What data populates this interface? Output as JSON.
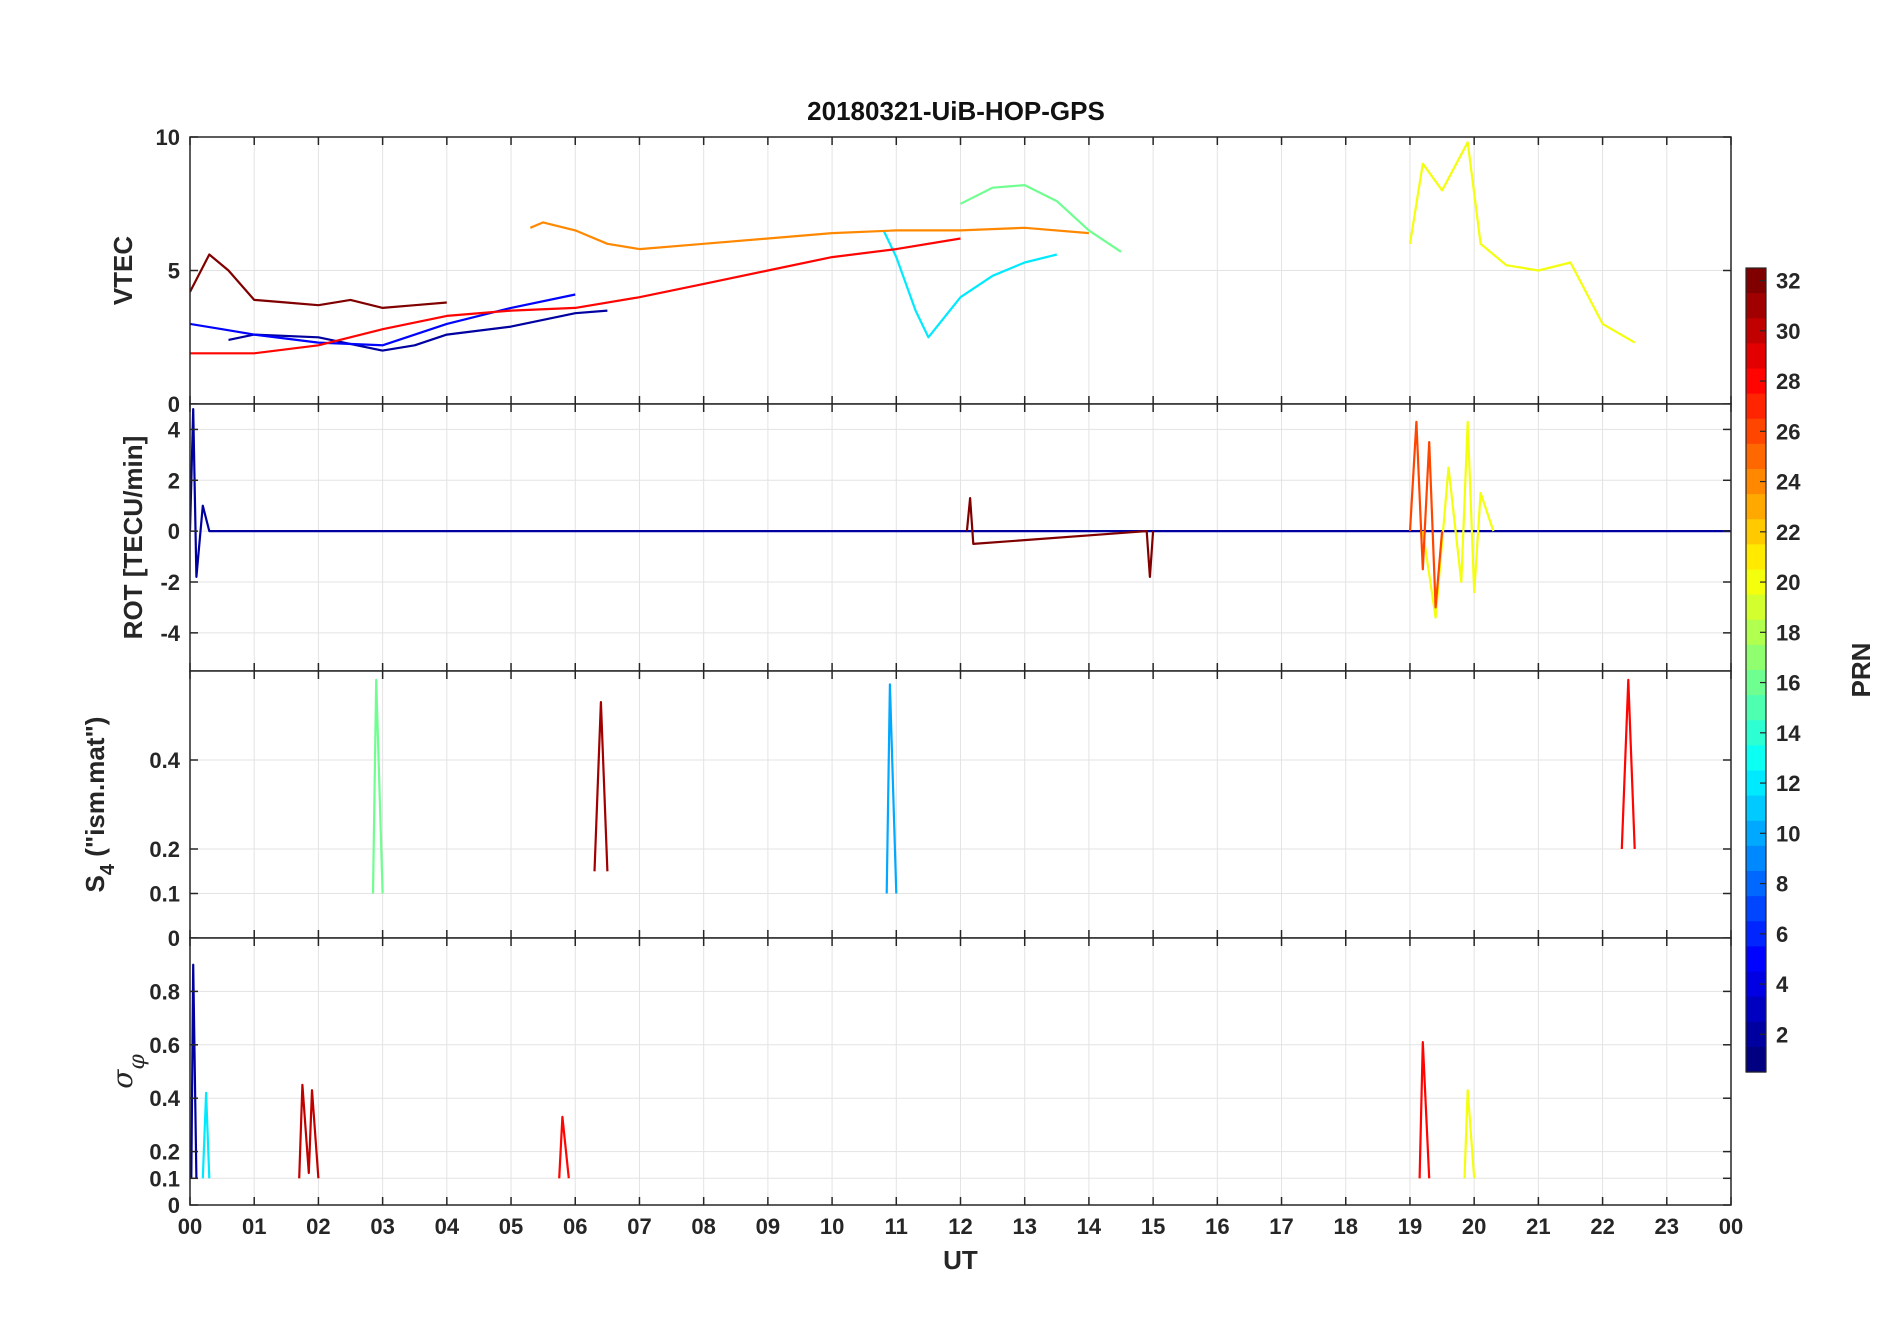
{
  "title": "20180321-UiB-HOP-GPS",
  "chart_data": {
    "type": "line",
    "title": "20180321-UiB-HOP-GPS",
    "xlabel": "UT",
    "xlim": [
      0,
      24
    ],
    "x_tick_labels": [
      "00",
      "01",
      "02",
      "03",
      "04",
      "05",
      "06",
      "07",
      "08",
      "09",
      "10",
      "11",
      "12",
      "13",
      "14",
      "15",
      "16",
      "17",
      "18",
      "19",
      "20",
      "21",
      "22",
      "23",
      "00"
    ],
    "grid": true,
    "colorbar": {
      "label": "PRN",
      "range": [
        1,
        32
      ],
      "colormap": "jet",
      "tick_labels": [
        "2",
        "4",
        "6",
        "8",
        "10",
        "12",
        "14",
        "16",
        "18",
        "20",
        "22",
        "24",
        "26",
        "28",
        "30",
        "32"
      ],
      "position": "right"
    },
    "panels": [
      {
        "id": "vtec",
        "ylabel": "VTEC",
        "ylim": [
          0,
          10
        ],
        "y_tick_labels": [
          "0",
          "5",
          "10"
        ],
        "series": [
          {
            "prn": 2,
            "x": [
              0.6,
              1,
              2,
              3,
              3.5,
              4,
              5,
              6,
              6.5
            ],
            "y": [
              2.4,
              2.6,
              2.5,
              2.0,
              2.2,
              2.6,
              2.9,
              3.4,
              3.5
            ]
          },
          {
            "prn": 5,
            "x": [
              0,
              0.5,
              1,
              2,
              3,
              4,
              5,
              6
            ],
            "y": [
              3.0,
              2.8,
              2.6,
              2.3,
              2.2,
              3.0,
              3.6,
              4.1
            ]
          },
          {
            "prn": 12,
            "x": [
              10.8,
              11,
              11.3,
              11.5,
              12,
              12.5,
              13,
              13.5
            ],
            "y": [
              6.5,
              5.5,
              3.5,
              2.5,
              4.0,
              4.8,
              5.3,
              5.6
            ]
          },
          {
            "prn": 16,
            "x": [
              12,
              12.5,
              13,
              13.5,
              14,
              14.5
            ],
            "y": [
              7.5,
              8.1,
              8.2,
              7.6,
              6.5,
              5.7
            ]
          },
          {
            "prn": 20,
            "x": [
              19.0,
              19.2,
              19.5,
              19.9,
              20.1,
              20.5,
              21,
              21.5,
              22,
              22.5
            ],
            "y": [
              6.0,
              9.0,
              8.0,
              9.8,
              6.0,
              5.2,
              5.0,
              5.3,
              3.0,
              2.3
            ]
          },
          {
            "prn": 24,
            "x": [
              5.3,
              5.5,
              6,
              6.5,
              7,
              8,
              9,
              10,
              11,
              12,
              13,
              14
            ],
            "y": [
              6.6,
              6.8,
              6.5,
              6.0,
              5.8,
              6.0,
              6.2,
              6.4,
              6.5,
              6.5,
              6.6,
              6.4
            ]
          },
          {
            "prn": 28,
            "x": [
              0,
              1,
              2,
              3,
              4,
              5,
              6,
              7,
              8,
              9,
              10,
              11,
              12
            ],
            "y": [
              1.9,
              1.9,
              2.2,
              2.8,
              3.3,
              3.5,
              3.6,
              4.0,
              4.5,
              5.0,
              5.5,
              5.8,
              6.2
            ]
          },
          {
            "prn": 32,
            "x": [
              0,
              0.3,
              0.6,
              1,
              1.5,
              2,
              2.5,
              3,
              3.5,
              4
            ],
            "y": [
              4.2,
              5.6,
              5.0,
              3.9,
              3.8,
              3.7,
              3.9,
              3.6,
              3.7,
              3.8
            ]
          }
        ]
      },
      {
        "id": "rot",
        "ylabel": "ROT [TECU/min]",
        "ylim": [
          -5.5,
          5
        ],
        "y_tick_labels": [
          "-4",
          "-2",
          "0",
          "2",
          "4"
        ],
        "series": [
          {
            "prn": 2,
            "x": [
              0,
              0.05,
              0.1,
              0.2,
              0.3,
              1,
              5,
              10,
              14.5,
              15,
              19,
              23.5,
              24
            ],
            "y": [
              0,
              4.8,
              -1.8,
              1.0,
              0,
              0,
              0,
              0,
              0,
              0,
              0,
              0,
              0
            ]
          },
          {
            "prn": 20,
            "x": [
              19.2,
              19.4,
              19.6,
              19.8,
              19.9,
              20.0,
              20.1,
              20.3
            ],
            "y": [
              0,
              -3.4,
              2.5,
              -2.0,
              4.3,
              -2.4,
              1.5,
              0
            ]
          },
          {
            "prn": 26,
            "x": [
              19.0,
              19.1,
              19.2,
              19.3,
              19.4,
              19.5
            ],
            "y": [
              0,
              4.3,
              -1.5,
              3.5,
              -3.0,
              0
            ]
          },
          {
            "prn": 32,
            "x": [
              12.1,
              12.15,
              12.2,
              14.9,
              14.95,
              15.0
            ],
            "y": [
              0,
              1.3,
              -0.5,
              0,
              -1.8,
              0
            ]
          }
        ]
      },
      {
        "id": "s4",
        "ylabel": "S4 (\"ism.mat\")",
        "ylabel_main": "S",
        "ylabel_sub": "4",
        "ylabel_rest": " (\"ism.mat\")",
        "ylim": [
          0,
          0.6
        ],
        "y_tick_labels": [
          "0",
          "0.1",
          "0.2",
          "0.4"
        ],
        "series": [
          {
            "prn": 10,
            "x": [
              10.85,
              10.9,
              11.0
            ],
            "y": [
              0.1,
              0.57,
              0.1
            ]
          },
          {
            "prn": 16,
            "x": [
              2.85,
              2.9,
              3.0
            ],
            "y": [
              0.1,
              0.58,
              0.1
            ]
          },
          {
            "prn": 28,
            "x": [
              22.3,
              22.4,
              22.5
            ],
            "y": [
              0.2,
              0.58,
              0.2
            ]
          },
          {
            "prn": 31,
            "x": [
              6.3,
              6.4,
              6.5
            ],
            "y": [
              0.15,
              0.53,
              0.15
            ]
          }
        ]
      },
      {
        "id": "sigma_phi",
        "ylabel": "σφ",
        "ylabel_main": "σ",
        "ylabel_sub": "φ",
        "ylim": [
          0,
          1.0
        ],
        "y_tick_labels": [
          "0",
          "0.1",
          "0.2",
          "0.4",
          "0.6",
          "0.8"
        ],
        "series": [
          {
            "prn": 2,
            "x": [
              0.02,
              0.05,
              0.1
            ],
            "y": [
              0.1,
              0.9,
              0.1
            ]
          },
          {
            "prn": 12,
            "x": [
              0.2,
              0.25,
              0.3
            ],
            "y": [
              0.1,
              0.42,
              0.1
            ]
          },
          {
            "prn": 30,
            "x": [
              1.7,
              1.75,
              1.85,
              1.9,
              2.0
            ],
            "y": [
              0.1,
              0.45,
              0.12,
              0.43,
              0.1
            ]
          },
          {
            "prn": 28,
            "x": [
              19.15,
              19.2,
              19.3
            ],
            "y": [
              0.1,
              0.61,
              0.1
            ]
          },
          {
            "prn": 20,
            "x": [
              19.85,
              19.9,
              20.0
            ],
            "y": [
              0.1,
              0.43,
              0.1
            ]
          },
          {
            "prn": 28,
            "x": [
              5.75,
              5.8,
              5.9
            ],
            "y": [
              0.1,
              0.33,
              0.1
            ]
          }
        ]
      }
    ]
  }
}
